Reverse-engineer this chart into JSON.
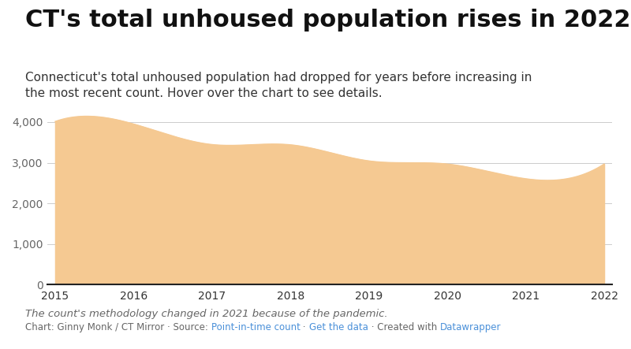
{
  "title": "CT's total unhoused population rises in 2022",
  "subtitle": "Connecticut's total unhoused population had dropped for years before increasing in\nthe most recent count. Hover over the chart to see details.",
  "note_italic": "The count's methodology changed in 2021 because of the pandemic.",
  "footer_plain": "Chart: Ginny Monk / CT Mirror · Source: ",
  "footer_link1": "Point-in-time count",
  "footer_mid": " · ",
  "footer_link2": "Get the data",
  "footer_end": " · Created with ",
  "footer_link3": "Datawrapper",
  "years": [
    2015,
    2016,
    2017,
    2018,
    2019,
    2020,
    2021,
    2022
  ],
  "values": [
    4016,
    3953,
    3447,
    3441,
    3044,
    2967,
    2604,
    2969
  ],
  "fill_color": "#f5c992",
  "background_color": "#ffffff",
  "grid_color": "#cccccc",
  "yticks": [
    0,
    1000,
    2000,
    3000,
    4000
  ],
  "ylim": [
    0,
    4300
  ],
  "title_fontsize": 22,
  "subtitle_fontsize": 11,
  "tick_fontsize": 10,
  "note_fontsize": 9.5,
  "footer_fontsize": 8.5,
  "link_color": "#4a90d9",
  "text_color": "#333333",
  "muted_color": "#666666",
  "axis_color": "#222222"
}
